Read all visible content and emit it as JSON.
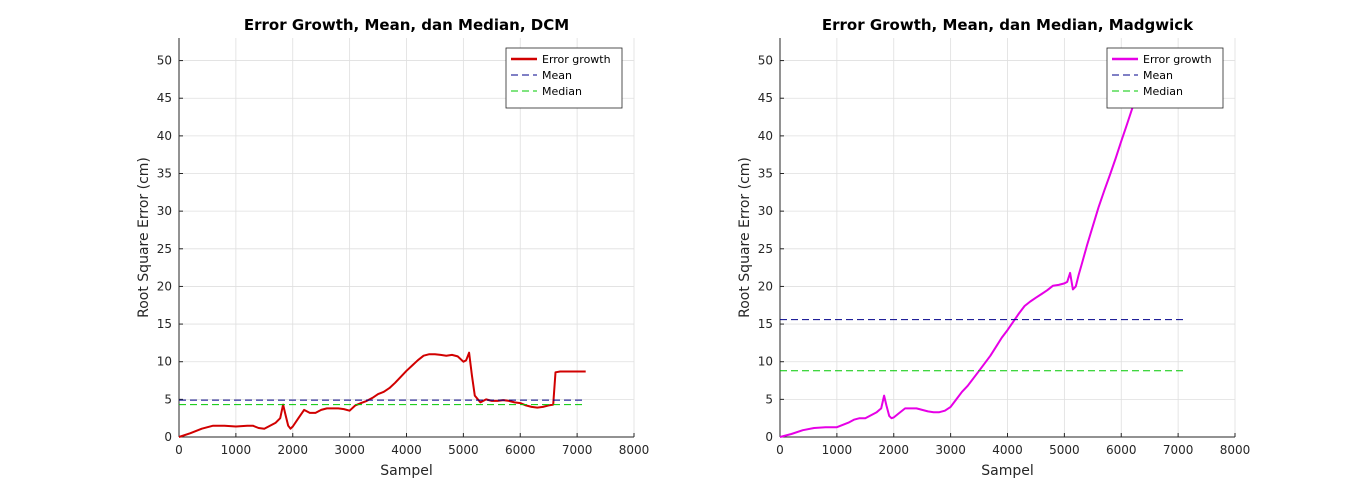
{
  "chart_data": [
    {
      "type": "line",
      "title": "Error Growth, Mean, dan Median, DCM",
      "xlabel": "Sampel",
      "ylabel": "Root Square Error (cm)",
      "xlim": [
        0,
        8000
      ],
      "ylim": [
        0,
        53
      ],
      "xticks": [
        0,
        1000,
        2000,
        3000,
        4000,
        5000,
        6000,
        7000,
        8000
      ],
      "yticks": [
        0,
        5,
        10,
        15,
        20,
        25,
        30,
        35,
        40,
        45,
        50
      ],
      "grid": true,
      "legend_position": "top-right",
      "series": [
        {
          "name": "Error growth",
          "style": "solid",
          "color": "#d10000",
          "x": [
            0,
            200,
            400,
            600,
            800,
            1000,
            1200,
            1300,
            1400,
            1500,
            1600,
            1700,
            1780,
            1830,
            1870,
            1920,
            1960,
            2000,
            2100,
            2200,
            2300,
            2400,
            2500,
            2600,
            2700,
            2800,
            2900,
            3000,
            3100,
            3200,
            3300,
            3400,
            3500,
            3600,
            3700,
            3800,
            3900,
            4000,
            4100,
            4200,
            4300,
            4400,
            4500,
            4600,
            4700,
            4800,
            4900,
            5000,
            5050,
            5100,
            5150,
            5200,
            5300,
            5400,
            5500,
            5600,
            5700,
            5800,
            5900,
            6000,
            6100,
            6200,
            6300,
            6400,
            6500,
            6580,
            6620,
            6700,
            6800,
            7000,
            7150
          ],
          "y": [
            0,
            0.5,
            1.1,
            1.5,
            1.5,
            1.4,
            1.5,
            1.5,
            1.2,
            1.1,
            1.5,
            1.9,
            2.5,
            4.3,
            3.0,
            1.5,
            1.1,
            1.4,
            2.5,
            3.6,
            3.2,
            3.2,
            3.6,
            3.8,
            3.8,
            3.8,
            3.7,
            3.5,
            4.2,
            4.5,
            4.8,
            5.2,
            5.7,
            6.0,
            6.5,
            7.2,
            8.0,
            8.8,
            9.5,
            10.2,
            10.8,
            11.0,
            11.0,
            10.9,
            10.8,
            10.9,
            10.7,
            10.0,
            10.2,
            11.2,
            8.2,
            5.5,
            4.6,
            5.0,
            4.8,
            4.8,
            4.9,
            4.8,
            4.6,
            4.5,
            4.2,
            4.0,
            3.9,
            4.0,
            4.2,
            4.3,
            8.6,
            8.7,
            8.7,
            8.7,
            8.7
          ]
        },
        {
          "name": "Mean",
          "style": "dashed",
          "color": "#00008b",
          "x": [
            0,
            7150
          ],
          "y": [
            4.9,
            4.9
          ]
        },
        {
          "name": "Median",
          "style": "dashed",
          "color": "#00c800",
          "x": [
            0,
            7150
          ],
          "y": [
            4.3,
            4.3
          ]
        }
      ]
    },
    {
      "type": "line",
      "title": "Error Growth, Mean, dan Median, Madgwick",
      "xlabel": "Sampel",
      "ylabel": "Root Square Error (cm)",
      "xlim": [
        0,
        8000
      ],
      "ylim": [
        0,
        53
      ],
      "xticks": [
        0,
        1000,
        2000,
        3000,
        4000,
        5000,
        6000,
        7000,
        8000
      ],
      "yticks": [
        0,
        5,
        10,
        15,
        20,
        25,
        30,
        35,
        40,
        45,
        50
      ],
      "grid": true,
      "legend_position": "top-right",
      "series": [
        {
          "name": "Error growth",
          "style": "solid",
          "color": "#e600e6",
          "x": [
            0,
            200,
            400,
            600,
            800,
            1000,
            1200,
            1300,
            1400,
            1500,
            1600,
            1700,
            1780,
            1830,
            1870,
            1920,
            1960,
            2000,
            2100,
            2200,
            2300,
            2400,
            2500,
            2600,
            2700,
            2800,
            2900,
            3000,
            3100,
            3200,
            3300,
            3400,
            3500,
            3600,
            3700,
            3800,
            3900,
            4000,
            4100,
            4200,
            4300,
            4400,
            4500,
            4600,
            4700,
            4800,
            4900,
            5000,
            5050,
            5100,
            5150,
            5200,
            5250,
            5300,
            5400,
            5500,
            5600,
            5700,
            5800,
            5900,
            6000,
            6100,
            6200,
            6300,
            6400,
            6500,
            6550
          ],
          "y": [
            0,
            0.4,
            0.9,
            1.2,
            1.3,
            1.3,
            1.9,
            2.3,
            2.5,
            2.5,
            2.9,
            3.3,
            3.8,
            5.5,
            4.2,
            2.8,
            2.5,
            2.6,
            3.2,
            3.8,
            3.8,
            3.8,
            3.6,
            3.4,
            3.3,
            3.3,
            3.5,
            4.0,
            5.0,
            6.0,
            6.8,
            7.8,
            8.8,
            9.8,
            10.8,
            12.0,
            13.2,
            14.2,
            15.3,
            16.4,
            17.4,
            18.0,
            18.5,
            19.0,
            19.5,
            20.1,
            20.2,
            20.4,
            20.6,
            21.8,
            19.6,
            20.0,
            21.5,
            22.8,
            25.5,
            28.0,
            30.5,
            32.7,
            34.8,
            37.0,
            39.3,
            41.5,
            43.8,
            46.0,
            48.0,
            49.8,
            51.0
          ]
        },
        {
          "name": "Mean",
          "style": "dashed",
          "color": "#00008b",
          "x": [
            0,
            7150
          ],
          "y": [
            15.6,
            15.6
          ]
        },
        {
          "name": "Median",
          "style": "dashed",
          "color": "#00c800",
          "x": [
            0,
            7150
          ],
          "y": [
            8.8,
            8.8
          ]
        }
      ]
    }
  ]
}
